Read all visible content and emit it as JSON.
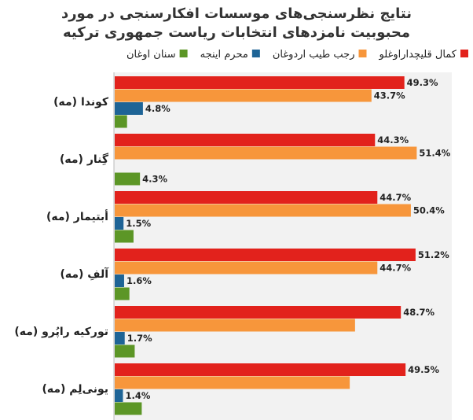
{
  "chart_data": {
    "type": "bar",
    "orientation": "horizontal",
    "title": "نتایج نظرسنجی‌های موسسات افکارسنجی در مورد محبوبیت نامزدهای انتخابات ریاست جمهوری ترکیه",
    "title_lines": [
      "نتایج نظرسنجی‌های موسسات افکارسنجی در مورد",
      "محبوبیت نامزدهای انتخابات ریاست جمهوری ترکیه"
    ],
    "legend_position": "top",
    "categories": [
      "کوندا (مه)",
      "گِنار (مه)",
      "أبتیمار (مه)",
      "آلفِ (مه)",
      "تورکیه راپُرو (مه)",
      "یونی‌لِم (مه)"
    ],
    "series": [
      {
        "name": "کمال قلیچداراوغلو",
        "color": "#e2221c",
        "values": [
          49.3,
          44.3,
          44.7,
          51.2,
          48.7,
          49.5
        ]
      },
      {
        "name": "رجب طیب اردوغان",
        "color": "#f7963b",
        "values": [
          43.7,
          51.4,
          50.4,
          44.7,
          40.9,
          40.0
        ]
      },
      {
        "name": "محرم اینجه",
        "color": "#1e6496",
        "values": [
          4.8,
          null,
          1.5,
          1.6,
          1.7,
          1.4
        ]
      },
      {
        "name": "سنان اوغان",
        "color": "#5c9626",
        "values": [
          2.1,
          4.3,
          3.2,
          2.5,
          3.4,
          4.6
        ]
      }
    ],
    "data_labels": [
      [
        "49.3%",
        "43.7%",
        "4.8%",
        ""
      ],
      [
        "44.3%",
        "51.4%",
        "",
        "4.3%"
      ],
      [
        "44.7%",
        "50.4%",
        "1.5%",
        ""
      ],
      [
        "51.2%",
        "44.7%",
        "1.6%",
        ""
      ],
      [
        "48.7%",
        "",
        "1.7%",
        ""
      ],
      [
        "49.5%",
        "",
        "1.4%",
        ""
      ]
    ],
    "xlim": [
      0,
      57.5
    ],
    "grid": false,
    "plot_background": "#f2f2f2"
  }
}
